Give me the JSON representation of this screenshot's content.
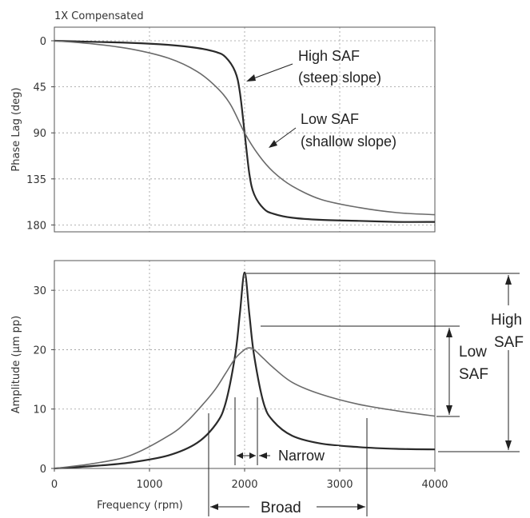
{
  "chart_data": [
    {
      "type": "line",
      "title": "1X Compensated",
      "xlabel": "",
      "ylabel": "Phase Lag (deg)",
      "xlim": [
        0,
        4000
      ],
      "ylim": [
        0,
        200
      ],
      "y_inverted": true,
      "grid": true,
      "yticks": [
        0,
        45,
        90,
        135,
        180
      ],
      "ytick_labels": [
        "0",
        "45",
        "90",
        "135",
        "180"
      ],
      "series": [
        {
          "name": "High SAF",
          "color": "#2a2a2a",
          "x": [
            0,
            400,
            800,
            1200,
            1500,
            1700,
            1800,
            1900,
            1950,
            2000,
            2050,
            2100,
            2200,
            2300,
            2500,
            2800,
            3200,
            3600,
            4000
          ],
          "y": [
            0,
            1,
            2,
            4,
            7,
            11,
            16,
            30,
            50,
            90,
            130,
            150,
            164,
            169,
            173,
            175,
            176,
            177,
            177
          ]
        },
        {
          "name": "Low SAF",
          "color": "#6a6a6a",
          "x": [
            0,
            400,
            800,
            1200,
            1500,
            1700,
            1850,
            2000,
            2150,
            2300,
            2500,
            2800,
            3200,
            3600,
            4000
          ],
          "y": [
            0,
            3,
            8,
            17,
            30,
            45,
            62,
            90,
            112,
            128,
            142,
            155,
            163,
            168,
            170
          ]
        }
      ],
      "annotations": [
        {
          "line1": "High SAF",
          "line2": "(steep slope)"
        },
        {
          "line1": "Low SAF",
          "line2": "(shallow slope)"
        }
      ]
    },
    {
      "type": "line",
      "xlabel": "Frequency (rpm)",
      "ylabel": "Amplitude (μm pp)",
      "xlim": [
        0,
        4000
      ],
      "ylim": [
        0,
        35
      ],
      "grid": true,
      "xticks": [
        0,
        1000,
        2000,
        3000,
        4000
      ],
      "xtick_labels": [
        "0",
        "1000",
        "2000",
        "3000",
        "4000"
      ],
      "yticks": [
        0,
        10,
        20,
        30
      ],
      "ytick_labels": [
        "0",
        "10",
        "20",
        "30"
      ],
      "series": [
        {
          "name": "High SAF",
          "color": "#2a2a2a",
          "x": [
            0,
            400,
            800,
            1200,
            1500,
            1700,
            1800,
            1900,
            1950,
            2000,
            2050,
            2100,
            2200,
            2300,
            2500,
            2800,
            3200,
            3600,
            4000
          ],
          "y": [
            0,
            0.4,
            1.0,
            2.2,
            4.3,
            7.5,
            11,
            19,
            26,
            33,
            26,
            19,
            11,
            8,
            5.5,
            4.2,
            3.6,
            3.3,
            3.2
          ]
        },
        {
          "name": "Low SAF",
          "color": "#6a6a6a",
          "x": [
            0,
            400,
            800,
            1200,
            1400,
            1600,
            1700,
            1800,
            1900,
            2000,
            2050,
            2100,
            2200,
            2300,
            2500,
            2800,
            3200,
            3600,
            4000
          ],
          "y": [
            0,
            0.8,
            2.2,
            5.5,
            8,
            11.5,
            13.5,
            16,
            18.5,
            20,
            20.3,
            20,
            18.5,
            17,
            14.5,
            12.5,
            10.8,
            9.7,
            8.8
          ]
        }
      ],
      "annotations": {
        "high_saf": {
          "line1": "High",
          "line2": "SAF"
        },
        "low_saf": {
          "line1": "Low",
          "line2": "SAF"
        },
        "narrow": "Narrow",
        "broad": "Broad"
      }
    }
  ]
}
